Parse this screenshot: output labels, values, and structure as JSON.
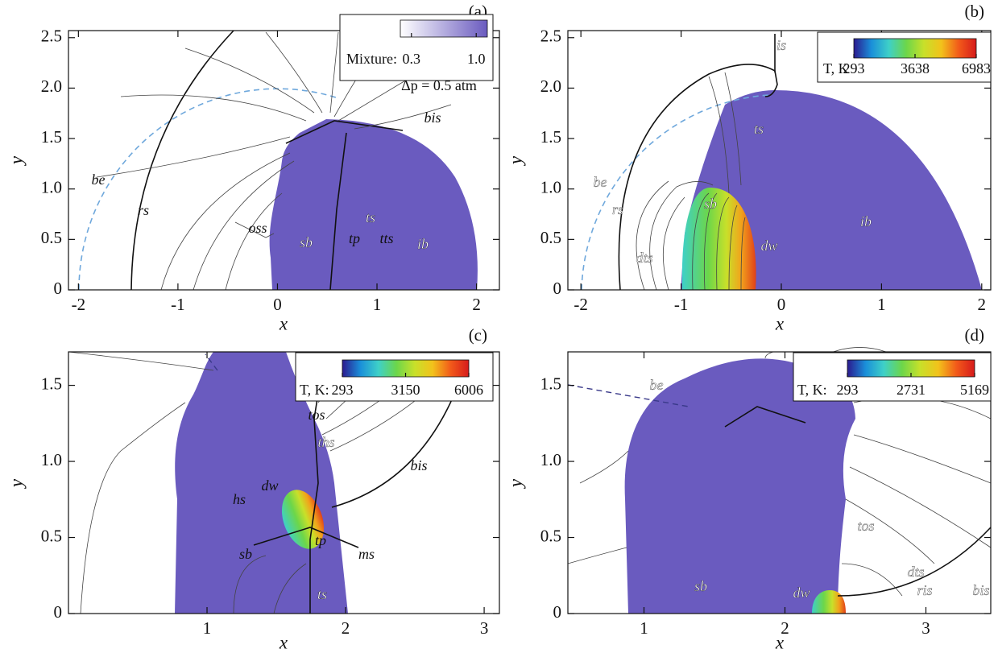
{
  "chart_data": [
    {
      "type": "field",
      "label": "(a)",
      "xlabel": "x",
      "ylabel": "y",
      "xlim": [
        -2.1,
        2.23
      ],
      "ylim": [
        0,
        2.57
      ],
      "xticks": [
        -2,
        -1,
        0,
        1,
        2
      ],
      "yticks": [
        0,
        0.5,
        {
          "value": 1,
          "label": "1.0"
        },
        1.5,
        {
          "value": 2,
          "label": "2.0"
        },
        2.5
      ],
      "colorbar": {
        "label": "Mixture:",
        "lim": [
          0.18,
          1.12
        ],
        "ticks": [
          0.3,
          {
            "value": 1,
            "label": "1.0"
          }
        ],
        "colors": [
          "#ffffff",
          "#6a5bbf"
        ]
      },
      "note": "Δp = 0.5 atm",
      "annotations": [
        "be",
        "rs",
        "oss",
        "tp",
        "tts",
        "bis",
        "ts",
        "sb",
        "ib"
      ]
    },
    {
      "type": "field",
      "label": "(b)",
      "xlabel": "x",
      "ylabel": "y",
      "xlim": [
        -2.13,
        2.09
      ],
      "ylim": [
        0,
        2.57
      ],
      "xticks": [
        -2,
        -1,
        0,
        1,
        2
      ],
      "yticks": [
        0,
        0.5,
        {
          "value": 1,
          "label": "1.0"
        },
        1.5,
        {
          "value": 2,
          "label": "2.0"
        },
        2.5
      ],
      "colorbar": {
        "label": "T, K",
        "lim": [
          293,
          6983
        ],
        "ticks": [
          293,
          3638,
          6983
        ],
        "colors": [
          "#2b1a8f",
          "#1a8fd9",
          "#3ed0c8",
          "#6cd64a",
          "#c8e02a",
          "#f2c21b",
          "#f25a1a",
          "#d61b1b"
        ]
      },
      "annotations": [
        "is",
        "ts",
        "rs",
        "sb",
        "be",
        "ib",
        "dw",
        "dts"
      ]
    },
    {
      "type": "field",
      "label": "(c)",
      "xlabel": "x",
      "ylabel": "y",
      "xlim": [
        0,
        3.11
      ],
      "ylim": [
        0,
        1.72
      ],
      "xticks": [
        1,
        2,
        3
      ],
      "yticks": [
        0,
        0.5,
        {
          "value": 1,
          "label": "1.0"
        },
        1.5
      ],
      "colorbar": {
        "label": "T, K:",
        "lim": [
          293,
          6006
        ],
        "ticks": [
          293,
          3150,
          6006
        ],
        "colors": [
          "#2b1a8f",
          "#1a8fd9",
          "#3ed0c8",
          "#6cd64a",
          "#c8e02a",
          "#f2c21b",
          "#f25a1a",
          "#d61b1b"
        ]
      },
      "annotations": [
        "tos",
        "ths",
        "bis",
        "dw",
        "hs",
        "tp",
        "ms",
        "sb",
        "ts"
      ]
    },
    {
      "type": "field",
      "label": "(d)",
      "xlabel": "x",
      "ylabel": "y",
      "xlim": [
        0.46,
        3.46
      ],
      "ylim": [
        0,
        1.72
      ],
      "xticks": [
        1,
        2,
        3
      ],
      "yticks": [
        0,
        0.5,
        {
          "value": 1,
          "label": "1.0"
        },
        1.5
      ],
      "colorbar": {
        "label": "T, K:",
        "lim": [
          293,
          5169
        ],
        "ticks": [
          293,
          2731,
          5169
        ],
        "colors": [
          "#2b1a8f",
          "#1a8fd9",
          "#3ed0c8",
          "#6cd64a",
          "#c8e02a",
          "#f2c21b",
          "#f25a1a",
          "#d61b1b"
        ]
      },
      "annotations": [
        "be",
        "sb",
        "dw",
        "tos",
        "dts",
        "ris",
        "bis"
      ]
    }
  ]
}
